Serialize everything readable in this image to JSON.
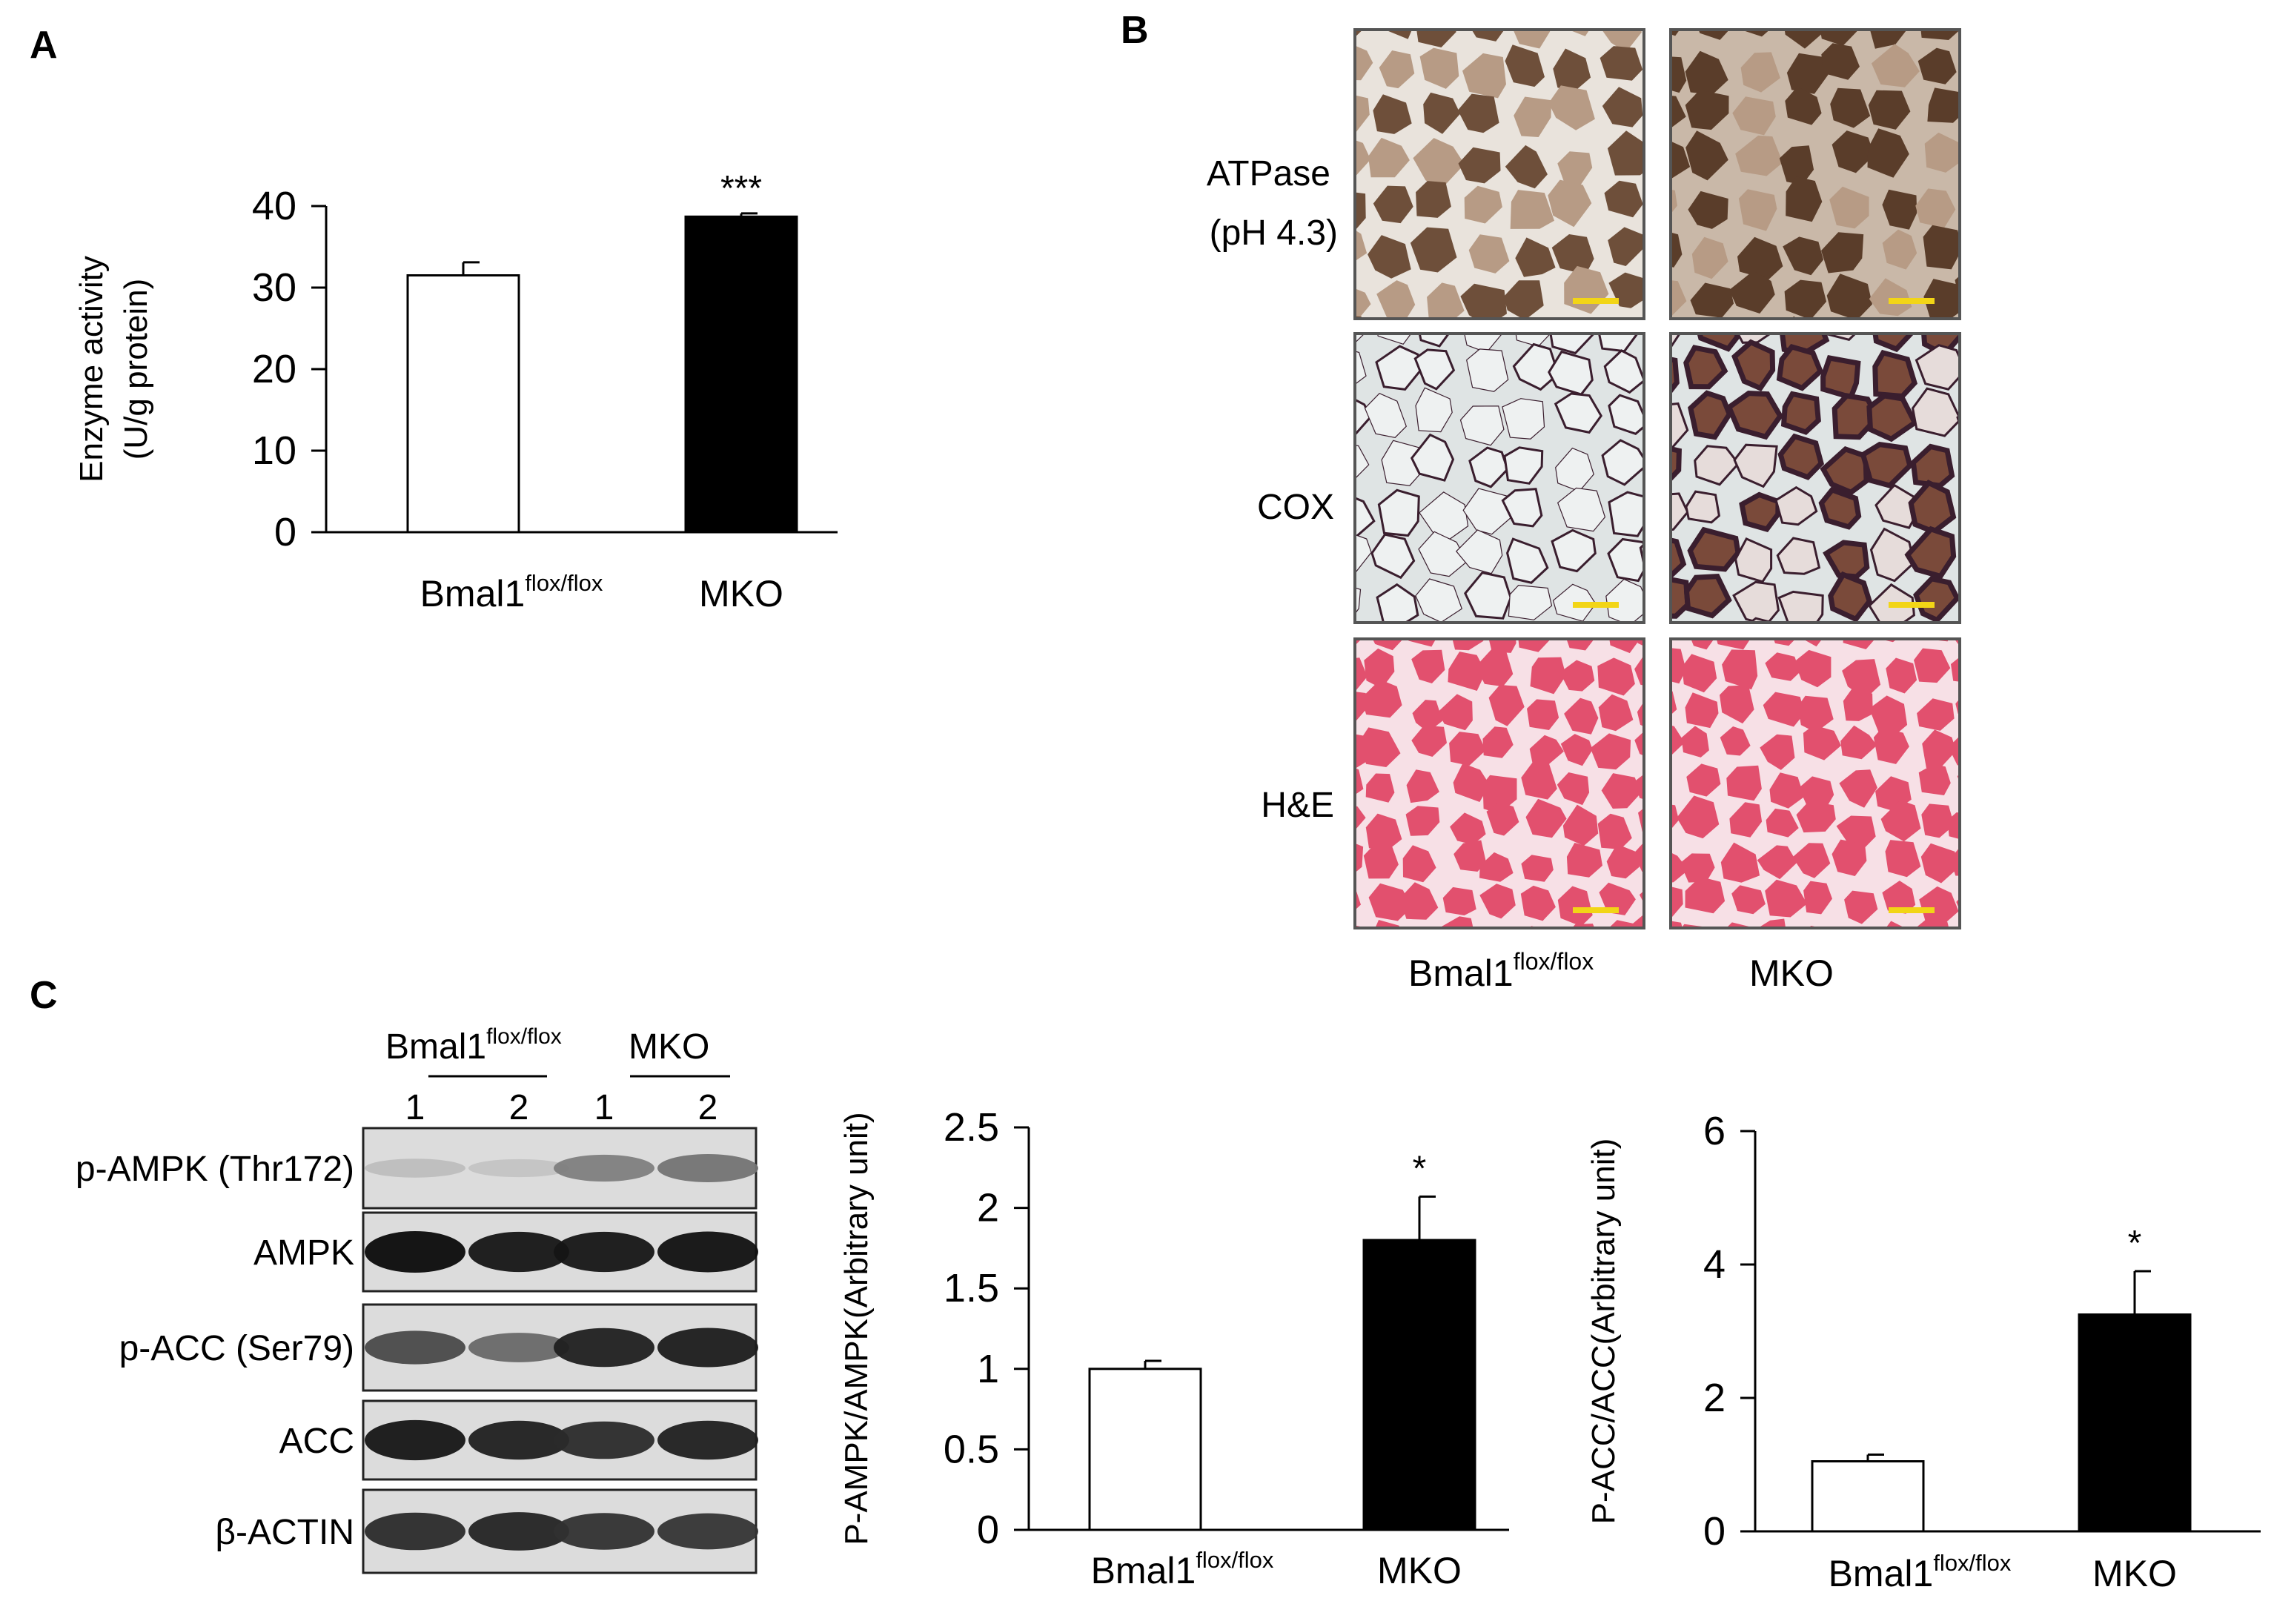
{
  "panels": {
    "a": {
      "label": "A"
    },
    "b": {
      "label": "B",
      "rows": [
        {
          "line1": "ATPase",
          "line2": "(pH 4.3)"
        },
        {
          "line1": "COX",
          "line2": ""
        },
        {
          "line1": "H&E",
          "line2": ""
        }
      ],
      "group1": {
        "base": "Bmal1",
        "sup": "flox/flox"
      },
      "group2": {
        "base": "MKO",
        "sup": ""
      },
      "colors": {
        "atpase_bg": "#a88a72",
        "atpase_fiber": "#6e4f3a",
        "atpase_fiber_mko": "#5a3d2a",
        "cox_bg": "#dfe4e4",
        "cox_ring": "#3a1e2e",
        "cox_fill_mko": "#7a4a3a",
        "he_bg": "#e2506e",
        "he_gap": "#f7e0e6",
        "scale_bar": "#f2d516"
      }
    },
    "c": {
      "label": "C",
      "blot": {
        "group1": {
          "base": "Bmal1",
          "sup": "flox/flox"
        },
        "group2": {
          "base": "MKO",
          "sup": ""
        },
        "lanes": [
          "1",
          "2",
          "1",
          "2"
        ],
        "rows": [
          {
            "label": "p-AMPK (Thr172)",
            "intensity": [
              0.15,
              0.12,
              0.45,
              0.5
            ]
          },
          {
            "label": "AMPK",
            "intensity": [
              1.0,
              0.95,
              0.95,
              0.97
            ]
          },
          {
            "label": "p-ACC (Ser79)",
            "intensity": [
              0.7,
              0.55,
              0.9,
              0.92
            ]
          },
          {
            "label": "ACC",
            "intensity": [
              0.95,
              0.9,
              0.85,
              0.9
            ]
          },
          {
            "label": "β-ACTIN",
            "intensity": [
              0.85,
              0.88,
              0.82,
              0.8
            ]
          }
        ]
      }
    }
  },
  "chart_data": [
    {
      "type": "bar",
      "categories": [
        {
          "base": "Bmal1",
          "sup": "flox/flox"
        },
        {
          "base": "MKO",
          "sup": ""
        }
      ],
      "values": [
        31.5,
        38.7
      ],
      "errors": [
        1.6,
        0.4
      ],
      "significance": [
        "",
        "***"
      ],
      "fills": [
        "#ffffff",
        "#000000"
      ],
      "ylabel_line1": "Enzyme activity",
      "ylabel_line2": "(U/g protein)",
      "ylim": [
        0,
        40
      ],
      "yticks": [
        "0",
        "10",
        "20",
        "30",
        "40"
      ],
      "grid": false
    },
    {
      "type": "bar",
      "categories": [
        {
          "base": "Bmal1",
          "sup": "flox/flox"
        },
        {
          "base": "MKO",
          "sup": ""
        }
      ],
      "values": [
        1.0,
        1.8
      ],
      "errors": [
        0.05,
        0.27
      ],
      "significance": [
        "",
        "*"
      ],
      "fills": [
        "#ffffff",
        "#000000"
      ],
      "ylabel_line1": "P-AMPK/AMPK(Arbitrary unit)",
      "ylabel_line2": "",
      "ylim": [
        0,
        2.5
      ],
      "yticks": [
        "0",
        "0.5",
        "1",
        "1.5",
        "2",
        "2.5"
      ],
      "grid": false
    },
    {
      "type": "bar",
      "categories": [
        {
          "base": "Bmal1",
          "sup": "flox/flox"
        },
        {
          "base": "MKO",
          "sup": ""
        }
      ],
      "values": [
        1.05,
        3.25
      ],
      "errors": [
        0.1,
        0.65
      ],
      "significance": [
        "",
        "*"
      ],
      "fills": [
        "#ffffff",
        "#000000"
      ],
      "ylabel_line1": "P-ACC/ACC(Arbitrary unit)",
      "ylabel_line2": "",
      "ylim": [
        0,
        6
      ],
      "yticks": [
        "0",
        "2",
        "4",
        "6"
      ],
      "grid": false
    }
  ]
}
